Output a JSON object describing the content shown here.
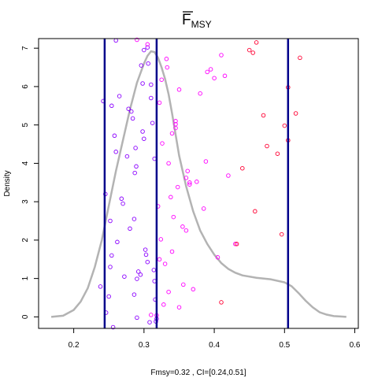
{
  "chart_data": {
    "type": "scatter",
    "title": "F",
    "title_subscript": "MSY",
    "title_overline": true,
    "xlabel": "Fmsy=0.32 , CI=[0.24,0.51]",
    "ylabel": "Density",
    "xlim": [
      0.15,
      0.605
    ],
    "ylim": [
      -0.3,
      7.25
    ],
    "xticks": [
      0.2,
      0.3,
      0.4,
      0.5,
      0.6
    ],
    "xtick_labels": [
      "0.2",
      "0.3",
      "0.4",
      "0.5",
      "0.6"
    ],
    "yticks": [
      0,
      1,
      2,
      3,
      4,
      5,
      6,
      7
    ],
    "ytick_labels": [
      "0",
      "1",
      "2",
      "3",
      "4",
      "5",
      "6",
      "7"
    ],
    "grid": false,
    "reference_lines": {
      "x": [
        0.244,
        0.318,
        0.505
      ],
      "color": "#00008b"
    },
    "density_curve": {
      "color": "#b3b3b3",
      "x": [
        0.168,
        0.185,
        0.2,
        0.21,
        0.22,
        0.23,
        0.24,
        0.25,
        0.26,
        0.27,
        0.28,
        0.29,
        0.3,
        0.305,
        0.31,
        0.315,
        0.32,
        0.325,
        0.33,
        0.335,
        0.34,
        0.345,
        0.35,
        0.36,
        0.37,
        0.38,
        0.39,
        0.4,
        0.41,
        0.42,
        0.43,
        0.44,
        0.46,
        0.48,
        0.5,
        0.51,
        0.52,
        0.53,
        0.54,
        0.55,
        0.56,
        0.57,
        0.58,
        0.588
      ],
      "y": [
        0.0,
        0.03,
        0.18,
        0.4,
        0.75,
        1.3,
        2.0,
        2.9,
        3.8,
        4.6,
        5.4,
        6.1,
        6.6,
        6.8,
        6.92,
        6.9,
        6.75,
        6.5,
        6.2,
        5.8,
        5.3,
        4.75,
        4.2,
        3.4,
        2.75,
        2.25,
        1.9,
        1.62,
        1.4,
        1.25,
        1.15,
        1.08,
        1.02,
        0.98,
        0.9,
        0.8,
        0.62,
        0.42,
        0.25,
        0.12,
        0.06,
        0.02,
        0.01,
        0.0
      ]
    },
    "series": [
      {
        "color": "#8b00ff",
        "x": [
          0.254,
          0.245,
          0.252,
          0.25,
          0.26,
          0.262,
          0.268,
          0.27,
          0.272,
          0.278,
          0.28,
          0.282,
          0.284,
          0.286,
          0.287,
          0.288,
          0.289,
          0.29,
          0.292,
          0.295,
          0.298,
          0.3,
          0.302,
          0.303,
          0.305,
          0.308,
          0.31,
          0.312,
          0.314,
          0.315,
          0.316,
          0.317,
          0.318,
          0.305,
          0.298,
          0.296,
          0.29,
          0.286,
          0.276,
          0.265,
          0.258,
          0.256,
          0.242,
          0.238,
          0.246,
          0.252,
          0.254,
          0.26,
          0.315,
          0.31,
          0.306,
          0.3
        ],
        "y": [
          5.5,
          3.2,
          2.5,
          0.53,
          4.3,
          1.95,
          3.08,
          2.95,
          1.05,
          5.42,
          2.3,
          5.35,
          5.17,
          2.55,
          3.75,
          4.4,
          3.92,
          0.99,
          1.18,
          1.1,
          4.83,
          4.64,
          1.75,
          1.62,
          1.43,
          -0.14,
          5.7,
          5.05,
          1.22,
          0.93,
          0.45,
          -0.12,
          -0.05,
          7.02,
          6.08,
          6.55,
          -0.02,
          0.58,
          4.18,
          5.75,
          4.72,
          -0.27,
          5.62,
          0.79,
          0.11,
          1.3,
          1.6,
          7.2,
          4.12,
          6.05,
          6.6,
          6.95
        ]
      },
      {
        "color": "#ff00ff",
        "x": [
          0.29,
          0.305,
          0.325,
          0.332,
          0.333,
          0.345,
          0.35,
          0.355,
          0.36,
          0.362,
          0.365,
          0.37,
          0.38,
          0.385,
          0.388,
          0.39,
          0.395,
          0.4,
          0.405,
          0.41,
          0.415,
          0.42,
          0.43,
          0.335,
          0.338,
          0.342,
          0.345,
          0.348,
          0.322,
          0.324,
          0.326,
          0.33,
          0.34,
          0.35,
          0.356,
          0.36,
          0.365,
          0.375,
          0.32,
          0.31,
          0.318,
          0.322,
          0.328,
          0.335,
          0.34,
          0.345
        ],
        "y": [
          7.22,
          7.1,
          6.18,
          6.72,
          6.5,
          5.1,
          5.92,
          2.35,
          2.25,
          3.8,
          3.5,
          0.72,
          5.82,
          2.82,
          4.05,
          6.38,
          6.45,
          6.22,
          1.55,
          6.82,
          6.28,
          3.68,
          1.9,
          4.0,
          3.12,
          2.6,
          4.92,
          3.38,
          5.58,
          2.02,
          4.52,
          1.38,
          1.7,
          0.25,
          0.84,
          3.62,
          3.45,
          3.52,
          2.88,
          0.05,
          0.04,
          1.5,
          0.32,
          0.65,
          4.78,
          5.02
        ]
      },
      {
        "color": "#ff0033",
        "x": [
          0.46,
          0.522,
          0.516,
          0.505,
          0.5,
          0.49,
          0.475,
          0.47,
          0.455,
          0.45,
          0.44,
          0.41,
          0.432,
          0.496,
          0.505,
          0.458
        ],
        "y": [
          7.15,
          6.75,
          5.3,
          5.98,
          4.98,
          4.25,
          4.45,
          5.25,
          6.88,
          6.95,
          3.87,
          0.38,
          1.9,
          2.15,
          4.6,
          2.75
        ]
      }
    ]
  }
}
